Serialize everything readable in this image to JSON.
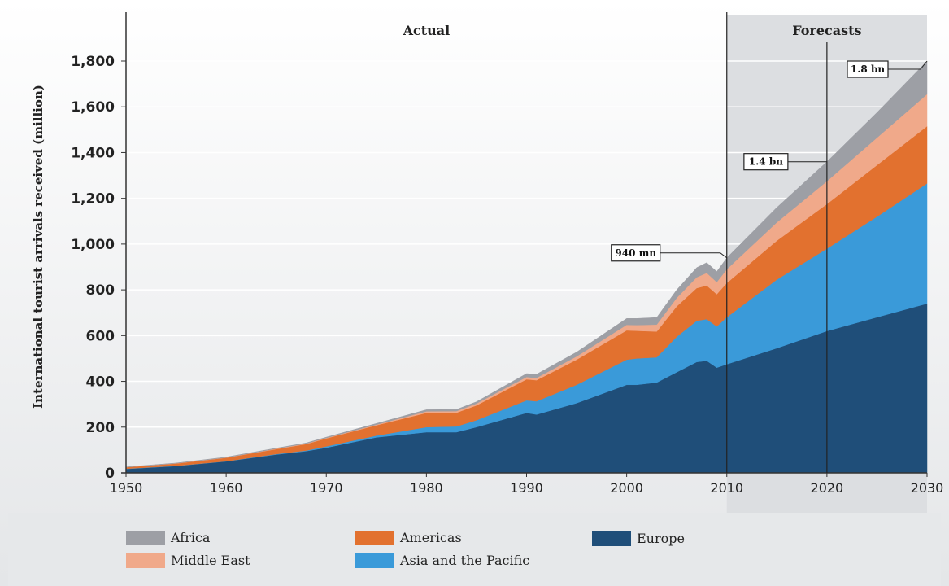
{
  "chart_data": {
    "type": "area",
    "stacked": true,
    "ylabel": "International tourist arrivals received (million)",
    "ylim": [
      0,
      1800
    ],
    "xlim": [
      1950,
      2030
    ],
    "x_ticks": [
      "1950",
      "1960",
      "1970",
      "1980",
      "1990",
      "2000",
      "2010",
      "2020",
      "2030"
    ],
    "y_ticks": [
      "0",
      "200",
      "400",
      "600",
      "800",
      "1,000",
      "1,200",
      "1,400",
      "1,600",
      "1,800"
    ],
    "grid": true,
    "legend_position": "bottom",
    "periods": [
      {
        "label": "Actual",
        "from": 1950,
        "to": 2010
      },
      {
        "label": "Forecasts",
        "from": 2010,
        "to": 2030
      }
    ],
    "markers": [
      2010,
      2020
    ],
    "annotations": [
      {
        "text": "940 mn",
        "x": 2010,
        "y": 940
      },
      {
        "text": "1.4 bn",
        "x": 2020,
        "y": 1360
      },
      {
        "text": "1.8 bn",
        "x": 2030,
        "y": 1800
      }
    ],
    "x": [
      1950,
      1955,
      1960,
      1965,
      1968,
      1970,
      1975,
      1980,
      1983,
      1985,
      1990,
      1991,
      1995,
      2000,
      2001,
      2003,
      2005,
      2007,
      2008,
      2009,
      2010,
      2015,
      2020,
      2025,
      2030
    ],
    "series": [
      {
        "name": "Europe",
        "color": "#1f4e79",
        "values": [
          17,
          30,
          50,
          80,
          95,
          110,
          155,
          178,
          178,
          200,
          262,
          255,
          305,
          385,
          385,
          395,
          440,
          485,
          490,
          460,
          475,
          545,
          620,
          680,
          740
        ]
      },
      {
        "name": "Asia and the Pacific",
        "color": "#3a9ad9",
        "values": [
          1,
          1,
          1,
          2,
          3,
          6,
          8,
          22,
          25,
          30,
          55,
          58,
          80,
          110,
          115,
          110,
          155,
          180,
          182,
          180,
          205,
          300,
          360,
          440,
          525
        ]
      },
      {
        "name": "Americas",
        "color": "#e2712f",
        "values": [
          7,
          10,
          15,
          22,
          28,
          35,
          45,
          62,
          60,
          65,
          92,
          92,
          110,
          128,
          121,
          113,
          133,
          143,
          147,
          141,
          150,
          170,
          195,
          225,
          250
        ]
      },
      {
        "name": "Middle East",
        "color": "#f0a98a",
        "values": [
          0,
          1,
          1,
          2,
          2,
          2,
          3,
          7,
          7,
          8,
          10,
          10,
          14,
          24,
          25,
          30,
          37,
          47,
          55,
          53,
          60,
          80,
          100,
          120,
          140
        ]
      },
      {
        "name": "Africa",
        "color": "#9d9fa5",
        "values": [
          1,
          1,
          2,
          2,
          3,
          3,
          5,
          7,
          7,
          8,
          15,
          16,
          19,
          28,
          29,
          31,
          35,
          42,
          45,
          46,
          50,
          65,
          85,
          110,
          145
        ]
      }
    ]
  },
  "legend": [
    {
      "label": "Africa",
      "color": "#9d9fa5"
    },
    {
      "label": "Middle East",
      "color": "#f0a98a"
    },
    {
      "label": "Americas",
      "color": "#e2712f"
    },
    {
      "label": "Asia and the Pacific",
      "color": "#3a9ad9"
    },
    {
      "label": "Europe",
      "color": "#1f4e79"
    }
  ]
}
